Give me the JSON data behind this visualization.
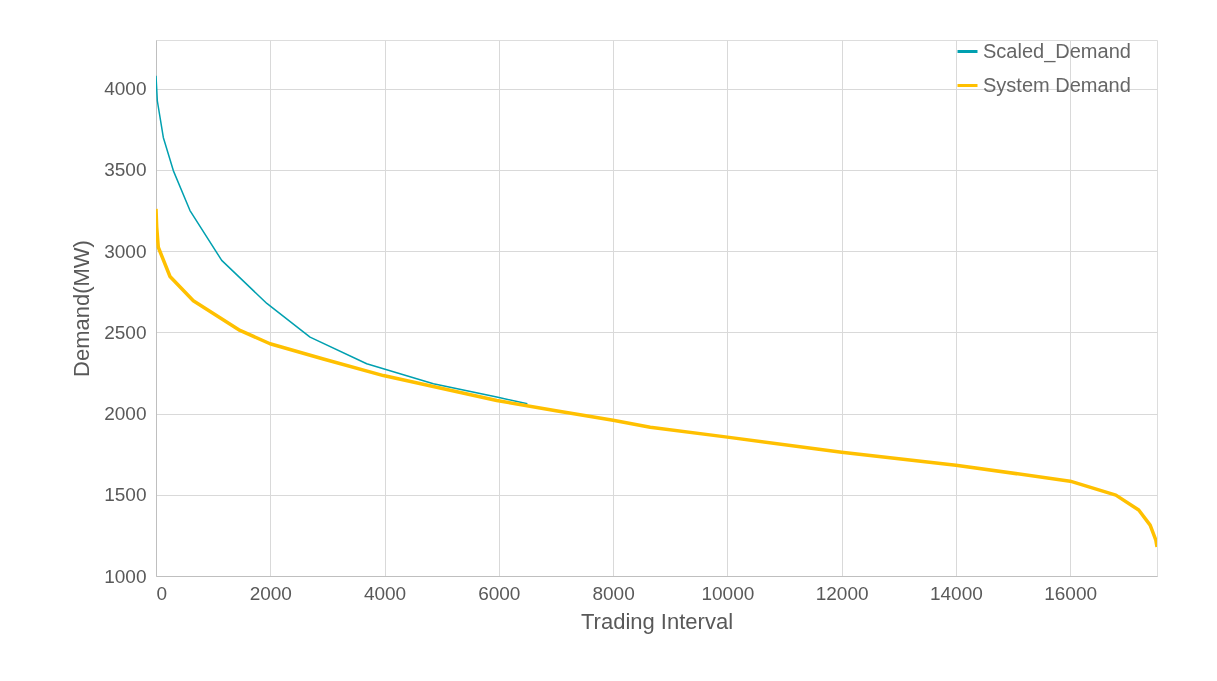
{
  "chart_data": {
    "type": "line",
    "xlabel": "Trading Interval",
    "ylabel": "Demand(MW)",
    "xlim": [
      0,
      17520
    ],
    "xticks": [
      0,
      2000,
      4000,
      6000,
      8000,
      10000,
      12000,
      14000,
      16000
    ],
    "ylim": [
      1000,
      4300
    ],
    "yticks": [
      1000,
      1500,
      2000,
      2500,
      3000,
      3500,
      4000
    ],
    "grid": true,
    "legend": "top right",
    "series": [
      {
        "name": "Scaled_Demand",
        "color": "#00a0b0",
        "x": [
          0,
          12,
          23,
          128,
          303,
          595,
          1150,
          1940,
          2696,
          3688,
          4855,
          5964,
          6500
        ],
        "values": [
          4080,
          4000,
          3926,
          3700,
          3496,
          3250,
          2943,
          2678,
          2471,
          2307,
          2184,
          2102,
          2060
        ]
      },
      {
        "name": "System Demand",
        "color": "#ffc000",
        "x": [
          0,
          12,
          40,
          245,
          653,
          1470,
          1996,
          2929,
          3980,
          5964,
          7000,
          8000,
          8650,
          10000,
          12000,
          14000,
          16000,
          16800,
          17200,
          17400,
          17500,
          17520
        ],
        "values": [
          3260,
          3150,
          3024,
          2844,
          2695,
          2512,
          2430,
          2336,
          2234,
          2080,
          2018,
          1959,
          1916,
          1855,
          1762,
          1682,
          1584,
          1498,
          1406,
          1313,
          1221,
          1178
        ]
      }
    ]
  }
}
